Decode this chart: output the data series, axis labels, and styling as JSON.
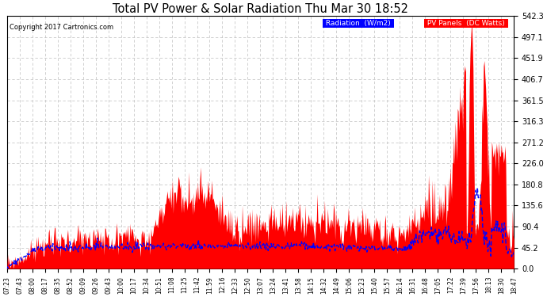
{
  "title": "Total PV Power & Solar Radiation Thu Mar 30 18:52",
  "copyright": "Copyright 2017 Cartronics.com",
  "yticks": [
    0.0,
    45.2,
    90.4,
    135.6,
    180.8,
    226.0,
    271.2,
    316.3,
    361.5,
    406.7,
    451.9,
    497.1,
    542.3
  ],
  "ymax": 542.3,
  "bg_color": "#ffffff",
  "grid_color": "#bbbbbb",
  "pv_color": "#ff0000",
  "radiation_color": "#0000ff",
  "x_labels": [
    "07:23",
    "07:43",
    "08:00",
    "08:17",
    "08:35",
    "08:52",
    "09:09",
    "09:26",
    "09:43",
    "10:00",
    "10:17",
    "10:34",
    "10:51",
    "11:08",
    "11:25",
    "11:42",
    "11:59",
    "12:16",
    "12:33",
    "12:50",
    "13:07",
    "13:24",
    "13:41",
    "13:58",
    "14:15",
    "14:32",
    "14:49",
    "15:06",
    "15:23",
    "15:40",
    "15:57",
    "16:14",
    "16:31",
    "16:48",
    "17:05",
    "17:22",
    "17:39",
    "17:56",
    "18:13",
    "18:30",
    "18:47"
  ]
}
